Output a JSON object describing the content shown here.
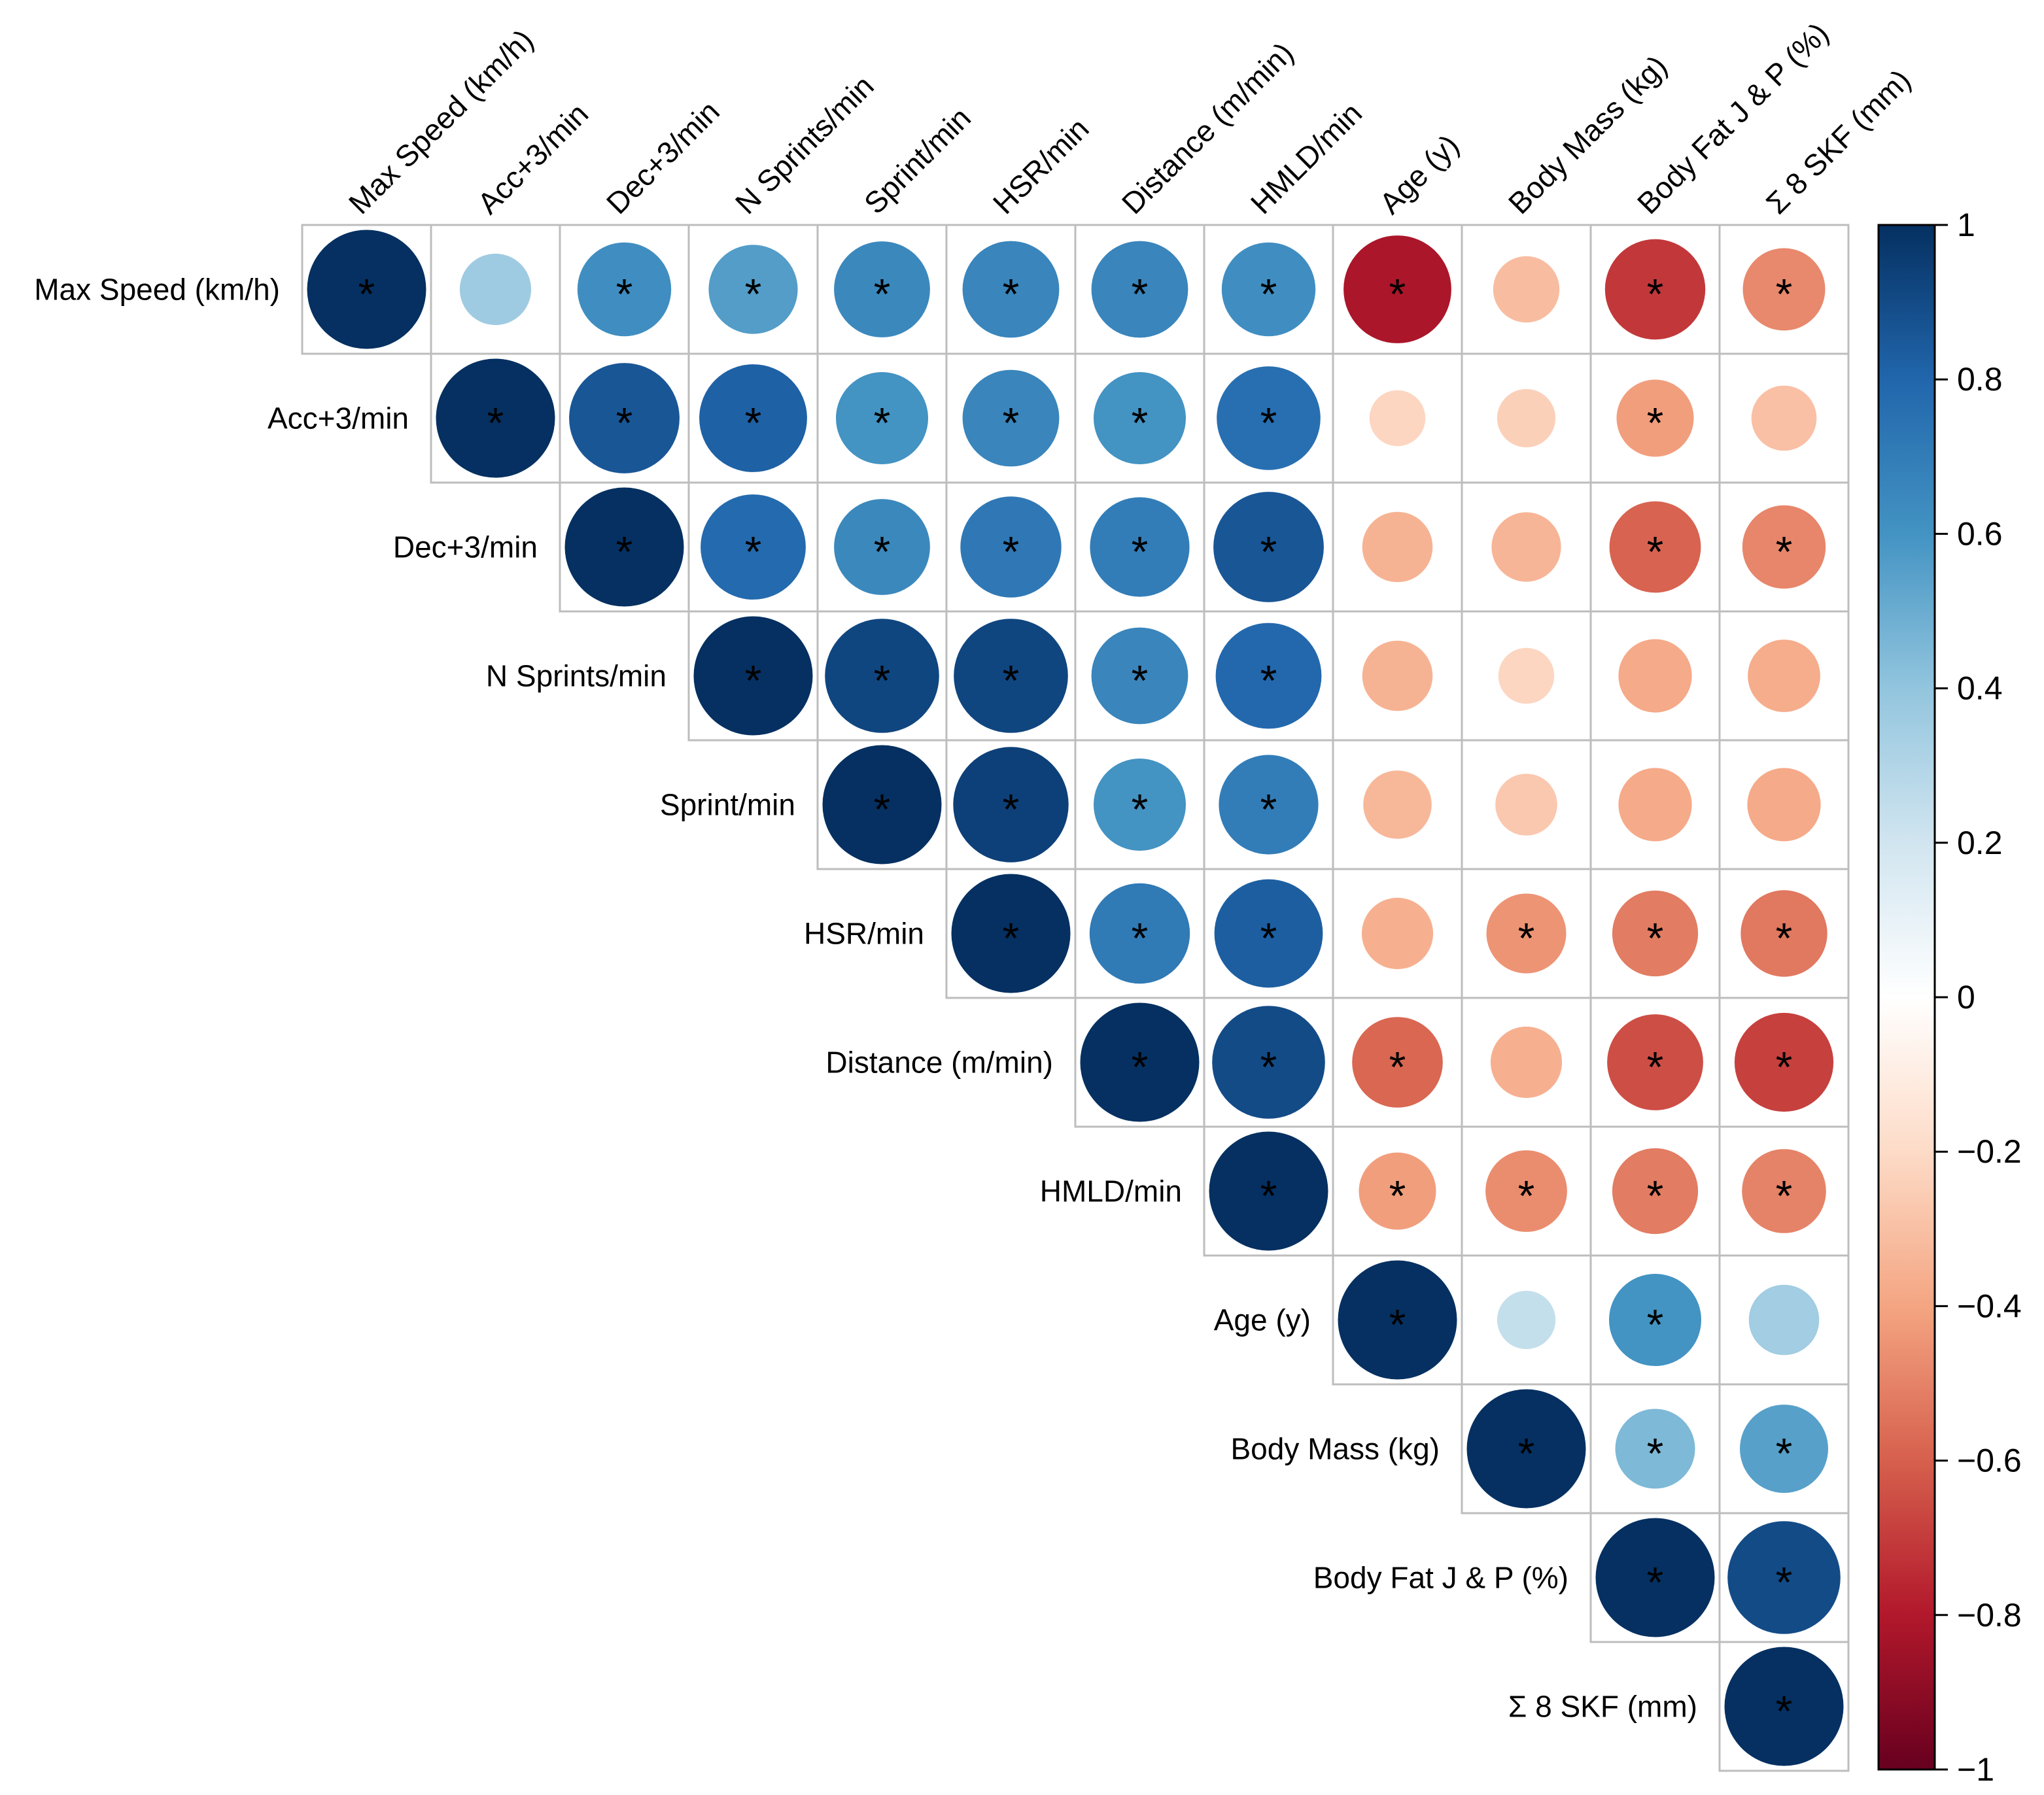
{
  "chart_data": {
    "type": "heatmap",
    "subtype": "correlation-upper-triangle-circles",
    "title": "",
    "variables": [
      "Max Speed (km/h)",
      "Acc+3/min",
      "Dec+3/min",
      "N Sprints/min",
      "Sprint/min",
      "HSR/min",
      "Distance (m/min)",
      "HMLD/min",
      "Age (y)",
      "Body Mass (kg)",
      "Body Fat J & P (%)",
      "Σ 8 SKF (mm)"
    ],
    "matrix": [
      [
        1.0,
        0.36,
        0.62,
        0.56,
        0.65,
        0.66,
        0.66,
        0.62,
        -0.82,
        -0.31,
        -0.71,
        -0.48
      ],
      [
        null,
        1.0,
        0.86,
        0.82,
        0.6,
        0.66,
        0.6,
        0.76,
        -0.22,
        -0.24,
        -0.42,
        -0.3
      ],
      [
        null,
        null,
        1.0,
        0.78,
        0.65,
        0.72,
        0.7,
        0.86,
        -0.35,
        -0.34,
        -0.59,
        -0.49
      ],
      [
        null,
        null,
        null,
        1.0,
        0.92,
        0.92,
        0.66,
        0.79,
        -0.35,
        -0.22,
        -0.38,
        -0.37
      ],
      [
        null,
        null,
        null,
        null,
        1.0,
        0.94,
        0.6,
        0.7,
        -0.33,
        -0.27,
        -0.38,
        -0.38
      ],
      [
        null,
        null,
        null,
        null,
        null,
        1.0,
        0.71,
        0.83,
        -0.36,
        -0.45,
        -0.52,
        -0.53
      ],
      [
        null,
        null,
        null,
        null,
        null,
        null,
        1.0,
        0.9,
        -0.58,
        -0.36,
        -0.65,
        -0.69
      ],
      [
        null,
        null,
        null,
        null,
        null,
        null,
        null,
        1.0,
        -0.42,
        -0.47,
        -0.52,
        -0.5
      ],
      [
        null,
        null,
        null,
        null,
        null,
        null,
        null,
        null,
        1.0,
        0.24,
        0.6,
        0.35
      ],
      [
        null,
        null,
        null,
        null,
        null,
        null,
        null,
        null,
        null,
        1.0,
        0.45,
        0.55
      ],
      [
        null,
        null,
        null,
        null,
        null,
        null,
        null,
        null,
        null,
        null,
        1.0,
        0.9
      ],
      [
        null,
        null,
        null,
        null,
        null,
        null,
        null,
        null,
        null,
        null,
        null,
        1.0
      ]
    ],
    "significant": [
      [
        1,
        0,
        1,
        1,
        1,
        1,
        1,
        1,
        1,
        0,
        1,
        1
      ],
      [
        0,
        1,
        1,
        1,
        1,
        1,
        1,
        1,
        0,
        0,
        1,
        0
      ],
      [
        0,
        0,
        1,
        1,
        1,
        1,
        1,
        1,
        0,
        0,
        1,
        1
      ],
      [
        0,
        0,
        0,
        1,
        1,
        1,
        1,
        1,
        0,
        0,
        0,
        0
      ],
      [
        0,
        0,
        0,
        0,
        1,
        1,
        1,
        1,
        0,
        0,
        0,
        0
      ],
      [
        0,
        0,
        0,
        0,
        0,
        1,
        1,
        1,
        0,
        1,
        1,
        1
      ],
      [
        0,
        0,
        0,
        0,
        0,
        0,
        1,
        1,
        1,
        0,
        1,
        1
      ],
      [
        0,
        0,
        0,
        0,
        0,
        0,
        0,
        1,
        1,
        1,
        1,
        1
      ],
      [
        0,
        0,
        0,
        0,
        0,
        0,
        0,
        0,
        1,
        0,
        1,
        0
      ],
      [
        0,
        0,
        0,
        0,
        0,
        0,
        0,
        0,
        0,
        1,
        1,
        1
      ],
      [
        0,
        0,
        0,
        0,
        0,
        0,
        0,
        0,
        0,
        0,
        1,
        1
      ],
      [
        0,
        0,
        0,
        0,
        0,
        0,
        0,
        0,
        0,
        0,
        0,
        1
      ]
    ],
    "significance_marker": "*",
    "colorbar": {
      "range": [
        -1,
        1
      ],
      "ticks": [
        "1",
        "0.8",
        "0.6",
        "0.4",
        "0.2",
        "0",
        "−0.2",
        "−0.4",
        "−0.6",
        "−0.8",
        "−1"
      ],
      "tick_values": [
        1,
        0.8,
        0.6,
        0.4,
        0.2,
        0,
        -0.2,
        -0.4,
        -0.6,
        -0.8,
        -1
      ],
      "palette_low_to_high": [
        "#67001F",
        "#B2182B",
        "#D6604D",
        "#F4A582",
        "#FDDBC7",
        "#FFFFFF",
        "#D1E5F0",
        "#92C5DE",
        "#4393C3",
        "#2166AC",
        "#053061"
      ]
    },
    "grid_color": "#bdbdbd"
  }
}
